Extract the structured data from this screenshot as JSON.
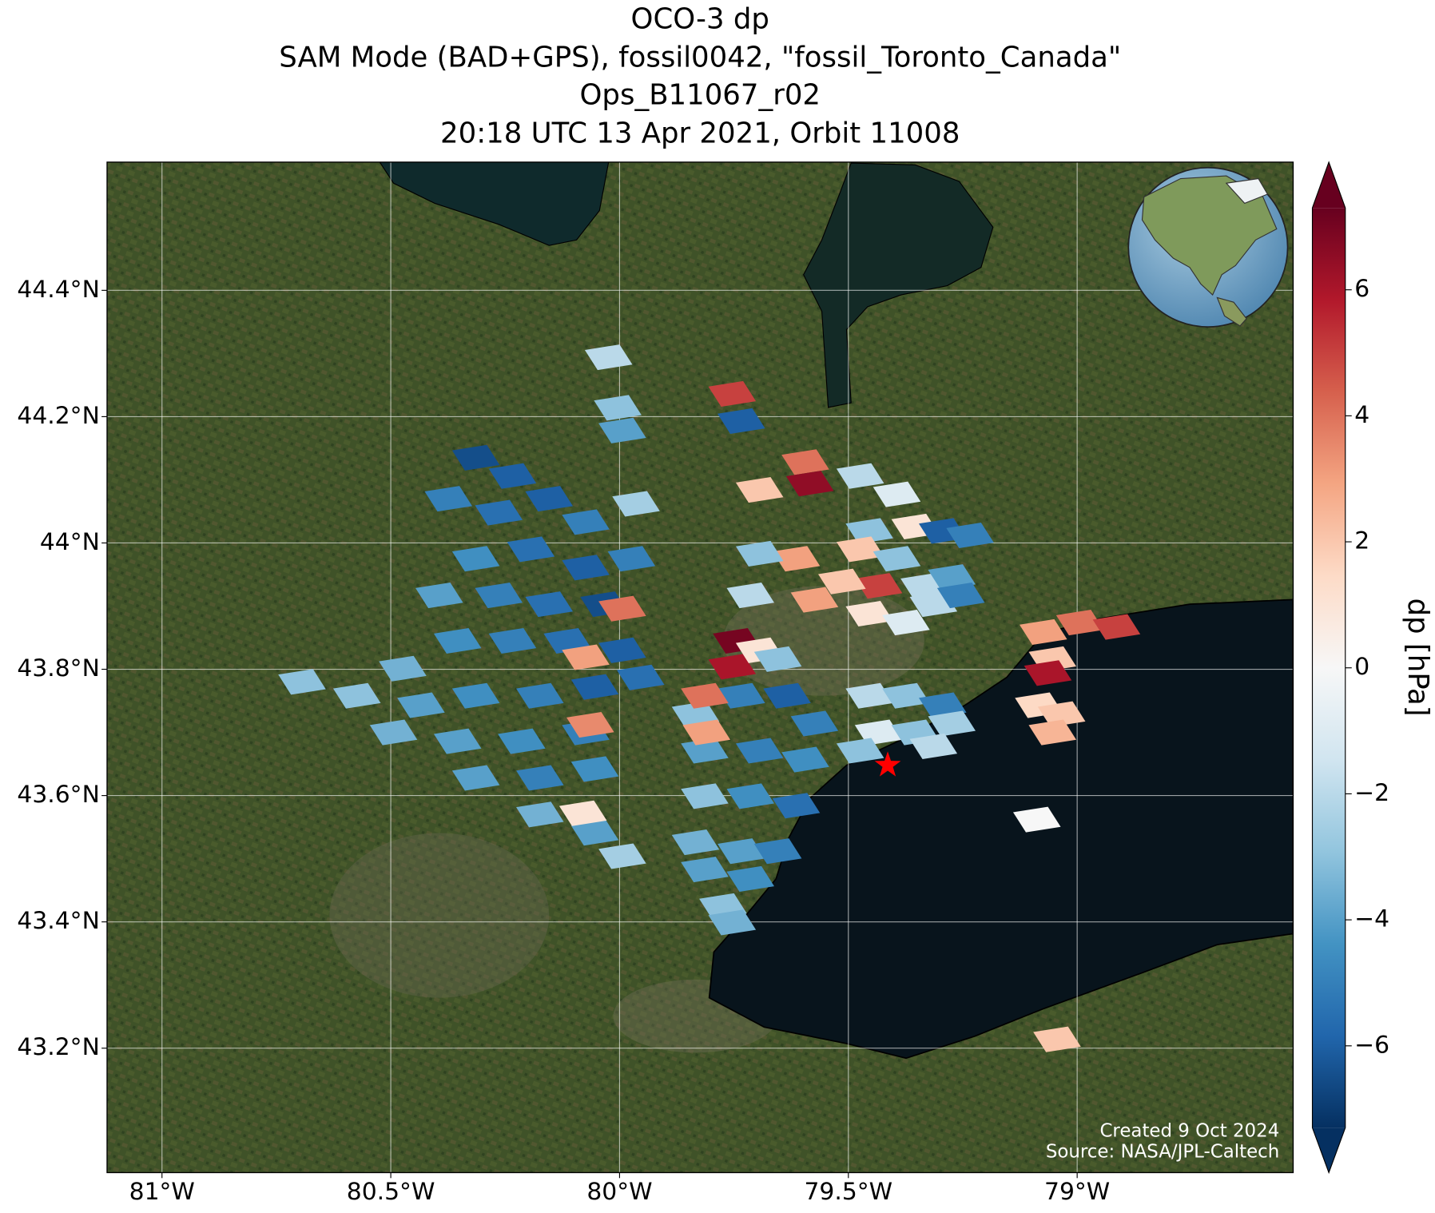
{
  "chart_data": {
    "type": "map",
    "title": [
      "OCO-3 dp",
      "SAM Mode (BAD+GPS), fossil0042, \"fossil_Toronto_Canada\"",
      "Ops_B11067_r02",
      "20:18 UTC 13 Apr 2021, Orbit 11008"
    ],
    "annotations": [
      "Created 9 Oct 2024",
      "Source: NASA/JPL-Caltech"
    ],
    "xlim": [
      -81.12,
      -78.528
    ],
    "ylim": [
      43.003,
      44.603
    ],
    "xticks": [
      {
        "value": -81,
        "label": "81°W"
      },
      {
        "value": -80.5,
        "label": "80.5°W"
      },
      {
        "value": -80,
        "label": "80°W"
      },
      {
        "value": -79.5,
        "label": "79.5°W"
      },
      {
        "value": -79,
        "label": "79°W"
      }
    ],
    "yticks": [
      {
        "value": 43.2,
        "label": "43.2°N"
      },
      {
        "value": 43.4,
        "label": "43.4°N"
      },
      {
        "value": 43.6,
        "label": "43.6°N"
      },
      {
        "value": 43.8,
        "label": "43.8°N"
      },
      {
        "value": 44,
        "label": "44°N"
      },
      {
        "value": 44.2,
        "label": "44.2°N"
      },
      {
        "value": 44.4,
        "label": "44.4°N"
      }
    ],
    "grid": true,
    "target": {
      "lon": -79.414,
      "lat": 43.648,
      "color": "#ff0000"
    },
    "colorbar": {
      "label": "dp [hPa]",
      "lim": [
        -7.3,
        7.3
      ],
      "ticks": [
        {
          "value": -6,
          "label": "−6"
        },
        {
          "value": -4,
          "label": "−4"
        },
        {
          "value": -2,
          "label": "−2"
        },
        0,
        2,
        4,
        6
      ],
      "colormap": [
        "#053061",
        "#2166ac",
        "#4393c3",
        "#92c5de",
        "#d1e5f0",
        "#f7f7f7",
        "#fddbc7",
        "#f4a582",
        "#d6604d",
        "#b2182b",
        "#67001f"
      ]
    },
    "x": [
      -80.314,
      -80.234,
      -80.374,
      -80.264,
      -80.154,
      -80.074,
      -80.314,
      -80.194,
      -80.074,
      -79.974,
      -80.394,
      -80.264,
      -80.154,
      -80.034,
      -80.354,
      -80.234,
      -80.114,
      -79.994,
      -80.474,
      -80.694,
      -80.574,
      -80.434,
      -80.314,
      -80.174,
      -80.054,
      -79.954,
      -80.494,
      -80.354,
      -80.214,
      -80.074,
      -80.314,
      -80.174,
      -80.054,
      -80.174,
      -80.054,
      -79.994,
      -79.994,
      -80.074,
      -80.064,
      -80.08,
      -80.024,
      -80.004,
      -79.994,
      -79.964,
      -79.754,
      -79.734,
      -79.694,
      -79.594,
      -79.584,
      -79.834,
      -79.734,
      -79.634,
      -79.574,
      -79.814,
      -79.694,
      -79.594,
      -79.814,
      -79.714,
      -79.614,
      -79.834,
      -79.734,
      -79.654,
      -79.814,
      -79.714,
      -79.774,
      -79.754,
      -79.814,
      -79.81,
      -79.744,
      -79.754,
      -79.694,
      -79.454,
      -79.374,
      -79.294,
      -79.434,
      -79.354,
      -79.274,
      -79.474,
      -79.314,
      -79.474,
      -79.394,
      -79.454,
      -79.354,
      -79.474,
      -79.394,
      -79.294,
      -79.234,
      -79.434,
      -79.334,
      -79.274,
      -79.454,
      -79.374,
      -79.314,
      -79.254,
      -79.614,
      -79.514,
      -79.574,
      -79.694,
      -79.714,
      -79.654,
      -79.074,
      -78.994,
      -78.914,
      -79.054,
      -79.064,
      -79.084,
      -79.034,
      -79.054,
      -79.088,
      -79.044
    ],
    "y": [
      44.135,
      44.106,
      44.07,
      44.048,
      44.07,
      44.033,
      43.975,
      43.99,
      43.961,
      43.975,
      43.917,
      43.917,
      43.903,
      43.903,
      43.845,
      43.845,
      43.845,
      43.83,
      43.801,
      43.78,
      43.758,
      43.743,
      43.758,
      43.758,
      43.772,
      43.787,
      43.7,
      43.686,
      43.686,
      43.7,
      43.628,
      43.628,
      43.642,
      43.57,
      43.541,
      43.504,
      43.896,
      43.819,
      43.712,
      43.572,
      44.294,
      44.214,
      44.178,
      44.062,
      44.236,
      44.193,
      44.084,
      44.128,
      44.094,
      43.729,
      43.758,
      43.758,
      43.714,
      43.671,
      43.671,
      43.657,
      43.599,
      43.599,
      43.584,
      43.526,
      43.512,
      43.512,
      43.483,
      43.468,
      43.425,
      43.399,
      43.758,
      43.7,
      43.845,
      43.804,
      43.83,
      43.758,
      43.758,
      43.743,
      43.7,
      43.7,
      43.714,
      43.671,
      43.678,
      44.106,
      44.077,
      44.019,
      44.026,
      43.99,
      43.975,
      44.019,
      44.012,
      43.932,
      43.932,
      43.946,
      43.888,
      43.874,
      43.903,
      43.917,
      43.975,
      43.939,
      43.91,
      43.983,
      43.917,
      43.816,
      43.859,
      43.874,
      43.867,
      43.816,
      43.794,
      43.743,
      43.729,
      43.7,
      43.562,
      43.214
    ],
    "values": [
      -6.5,
      -6,
      -5,
      -5.5,
      -6,
      -5,
      -4.5,
      -5.5,
      -6,
      -5,
      -4,
      -5,
      -5.5,
      -6.5,
      -4.5,
      -5,
      -5.5,
      -6,
      -3.5,
      -3,
      -3,
      -4,
      -4.5,
      -5,
      -6,
      -5.5,
      -3.5,
      -4,
      -4.5,
      -5,
      -4,
      -5,
      -4.5,
      -3.5,
      -4,
      -2.5,
      4,
      3,
      3.5,
      1,
      -2,
      -3,
      -4,
      -2.5,
      5,
      -6,
      2,
      4,
      6.5,
      -3,
      -5,
      -6,
      -5,
      -4,
      -5,
      -4.5,
      -3,
      -4.5,
      -5.5,
      -3.5,
      -4,
      -5,
      -4,
      -4.5,
      -3,
      -3.5,
      4,
      3,
      7,
      6,
      1,
      -2,
      -3,
      -5,
      -1,
      -3,
      -2.5,
      -3,
      -2,
      -2,
      -1,
      -3,
      1,
      2,
      -3,
      -6,
      -5,
      5,
      -2,
      -4,
      1,
      -1,
      -2,
      -5,
      3,
      2,
      3,
      -3,
      -2,
      -3,
      3,
      4,
      5,
      2,
      6,
      1.5,
      2,
      2.5,
      0,
      2
    ]
  }
}
